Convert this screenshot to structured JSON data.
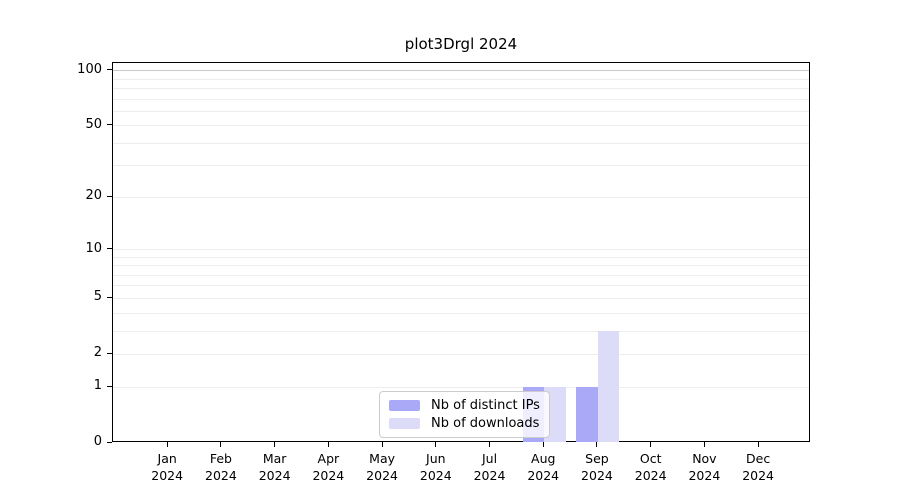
{
  "chart_data": {
    "type": "bar",
    "title": "plot3Drgl 2024",
    "categories": [
      "Jan",
      "Feb",
      "Mar",
      "Apr",
      "May",
      "Jun",
      "Jul",
      "Aug",
      "Sep",
      "Oct",
      "Nov",
      "Dec"
    ],
    "category_year": "2024",
    "series": [
      {
        "name": "Nb of distinct IPs",
        "color": "#a9a9f8",
        "values": [
          0,
          0,
          0,
          0,
          0,
          0,
          0,
          1,
          1,
          0,
          0,
          0
        ]
      },
      {
        "name": "Nb of downloads",
        "color": "#dcdcf8",
        "values": [
          0,
          0,
          0,
          0,
          0,
          0,
          0,
          1,
          3,
          0,
          0,
          0
        ]
      }
    ],
    "y_axis": {
      "scale": "log1p",
      "ticks": [
        0,
        1,
        2,
        5,
        10,
        20,
        50,
        100
      ],
      "minor_gridlines": [
        1,
        2,
        3,
        4,
        5,
        6,
        7,
        8,
        9,
        10,
        20,
        30,
        40,
        50,
        60,
        70,
        80,
        90,
        100
      ],
      "range": [
        0,
        110
      ]
    },
    "xlabel": "",
    "ylabel": "",
    "grid": true,
    "legend_position": "inside-bottom-center",
    "colors": {
      "axis": "#000000",
      "gridline_minor": "#ededed",
      "gridline_major": "#c9c9c9",
      "background": "#ffffff"
    }
  }
}
